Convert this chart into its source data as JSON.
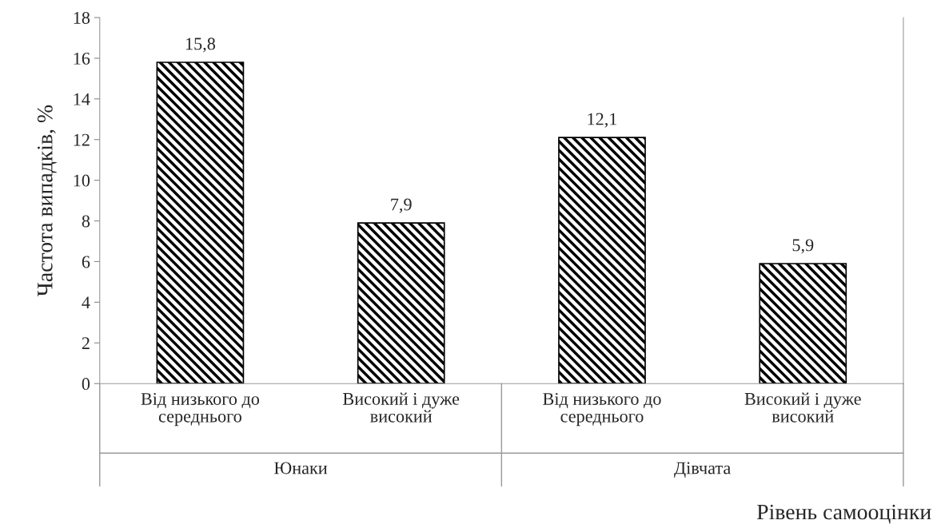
{
  "chart_data": {
    "type": "bar",
    "categories": [
      "Від низького до\nсереднього",
      "Високий і дуже\nвисокий",
      "Від низького до\nсереднього",
      "Високий і дуже\nвисокий"
    ],
    "values": [
      15.8,
      7.9,
      12.1,
      5.9
    ],
    "value_labels": [
      "15,8",
      "7,9",
      "12,1",
      "5,9"
    ],
    "color": "#000000",
    "ylabel": "Частота випадків, %",
    "xlabel": "Рівень самооцінки",
    "annotations": [
      "Юнаки",
      "Дівчата"
    ],
    "ylim": [
      0,
      18
    ],
    "yticks": [
      0,
      2,
      4,
      6,
      8,
      10,
      12,
      14,
      16,
      18
    ],
    "grid": false,
    "legend": false
  }
}
